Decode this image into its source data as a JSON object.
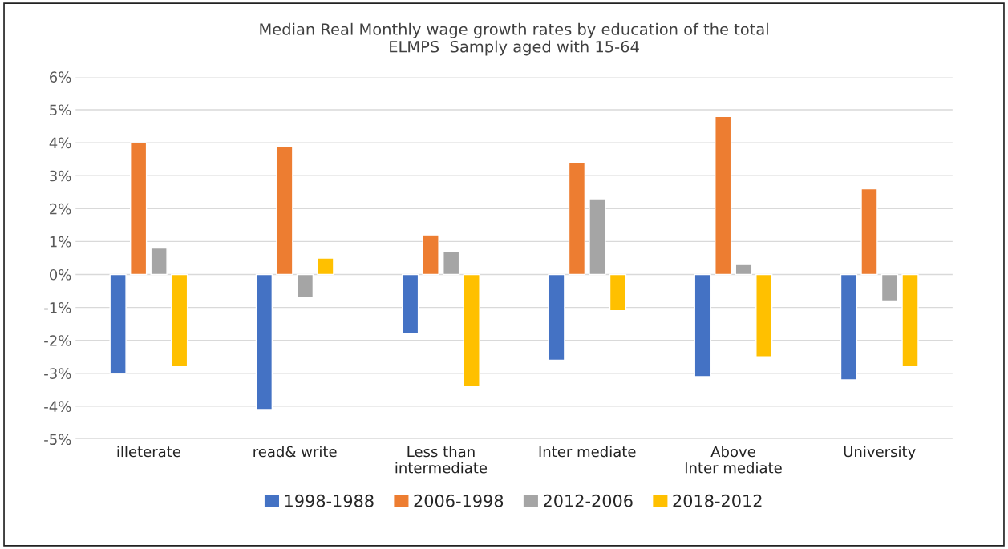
{
  "chart_data": {
    "type": "bar",
    "title": "Median Real Monthly wage growth rates by education of the total\nELMPS  Samply aged with 15-64",
    "categories": [
      "illeterate",
      "read& write",
      "Less than\nintermediate",
      "Inter mediate",
      "Above\nInter mediate",
      "University"
    ],
    "series": [
      {
        "name": "1998-1988",
        "color": "#4472c4",
        "values": [
          -3.0,
          -4.1,
          -1.8,
          -2.6,
          -3.1,
          -3.2
        ]
      },
      {
        "name": "2006-1998",
        "color": "#ed7d31",
        "values": [
          4.0,
          3.9,
          1.2,
          3.4,
          4.8,
          2.6
        ]
      },
      {
        "name": "2012-2006",
        "color": "#a5a5a5",
        "values": [
          0.8,
          -0.7,
          0.7,
          2.3,
          0.3,
          -0.8
        ]
      },
      {
        "name": "2018-2012",
        "color": "#ffc000",
        "values": [
          -2.8,
          0.5,
          -3.4,
          -1.1,
          -2.5,
          -2.8
        ]
      }
    ],
    "ylim": [
      -5,
      6
    ],
    "yticks": [
      {
        "value": -5,
        "label": "-5%"
      },
      {
        "value": -4,
        "label": "-4%"
      },
      {
        "value": -3,
        "label": "-3%"
      },
      {
        "value": -2,
        "label": "-2%"
      },
      {
        "value": -1,
        "label": "-1%"
      },
      {
        "value": 0,
        "label": "0%"
      },
      {
        "value": 1,
        "label": "1%"
      },
      {
        "value": 2,
        "label": "2%"
      },
      {
        "value": 3,
        "label": "3%"
      },
      {
        "value": 4,
        "label": "4%"
      },
      {
        "value": 5,
        "label": "5%"
      },
      {
        "value": 6,
        "label": "6%"
      }
    ],
    "grid": "y",
    "legend": "bottom"
  }
}
